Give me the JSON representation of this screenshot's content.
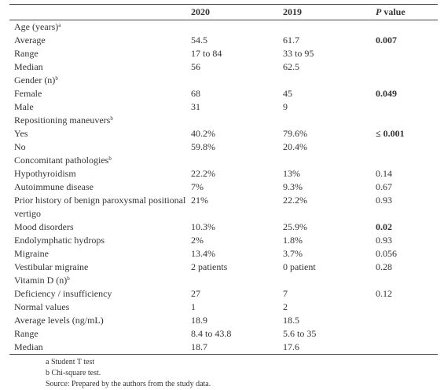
{
  "table": {
    "header": {
      "col_2020": "2020",
      "col_2019": "2019",
      "p_italic": "P",
      "p_rest": "value"
    },
    "sections": [
      {
        "title": "Age (years)",
        "sup": "a",
        "rows": [
          {
            "label": "Average",
            "v2020": "54.5",
            "v2019": "61.7",
            "p": "0.007",
            "p_bold": true
          },
          {
            "label": "Range",
            "v2020": "17 to 84",
            "v2019": "33 to 95"
          },
          {
            "label": "Median",
            "v2020": "56",
            "v2019": "62.5"
          }
        ]
      },
      {
        "title": "Gender (n)",
        "sup": "b",
        "rows": [
          {
            "label": "Female",
            "v2020": "68",
            "v2019": "45",
            "p": "0.049",
            "p_bold": true
          },
          {
            "label": "Male",
            "v2020": "31",
            "v2019": "9"
          }
        ]
      },
      {
        "title": "Repositioning maneuvers",
        "sup": "b",
        "rows": [
          {
            "label": "Yes",
            "v2020": "40.2%",
            "v2019": "79.6%",
            "p": "≤ 0.001",
            "p_bold": true
          },
          {
            "label": "No",
            "v2020": "59.8%",
            "v2019": "20.4%"
          }
        ]
      },
      {
        "title": "Concomitant pathologies",
        "sup": "b",
        "rows": [
          {
            "label": "Hypothyroidism",
            "v2020": "22.2%",
            "v2019": "13%",
            "p": "0.14",
            "p_bold": false
          },
          {
            "label": "Autoimmune disease",
            "v2020": "7%",
            "v2019": "9.3%",
            "p": "0.67",
            "p_bold": false
          },
          {
            "label": "Prior history of benign paroxysmal positional vertigo",
            "v2020": "21%",
            "v2019": "22.2%",
            "p": "0.93",
            "p_bold": false
          },
          {
            "label": "Mood disorders",
            "v2020": "10.3%",
            "v2019": "25.9%",
            "p": "0.02",
            "p_bold": true
          },
          {
            "label": "Endolymphatic hydrops",
            "v2020": "2%",
            "v2019": "1.8%",
            "p": "0.93",
            "p_bold": false
          },
          {
            "label": "Migraine",
            "v2020": "13.4%",
            "v2019": "3.7%",
            "p": "0.056",
            "p_bold": false
          },
          {
            "label": "Vestibular migraine",
            "v2020": "2 patients",
            "v2019": "0 patient",
            "p": "0.28",
            "p_bold": false
          }
        ]
      },
      {
        "title": "Vitamin D (n)",
        "sup": "b",
        "rows": [
          {
            "label": "Deficiency / insufficiency",
            "v2020": "27",
            "v2019": "7",
            "p": "0.12",
            "p_bold": false
          },
          {
            "label": "Normal values",
            "v2020": "1",
            "v2019": "2"
          },
          {
            "label": "Average levels (ng/mL)",
            "v2020": "18.9",
            "v2019": "18.5"
          },
          {
            "label": "Range",
            "v2020": "8.4 to 43.8",
            "v2019": "5.6 to 35"
          },
          {
            "label": "Median",
            "v2020": "18.7",
            "v2019": "17.6"
          }
        ]
      }
    ]
  },
  "footnotes": [
    "a Student T test",
    "b Chi-square test.",
    "Source: Prepared by the authors from the study data."
  ]
}
